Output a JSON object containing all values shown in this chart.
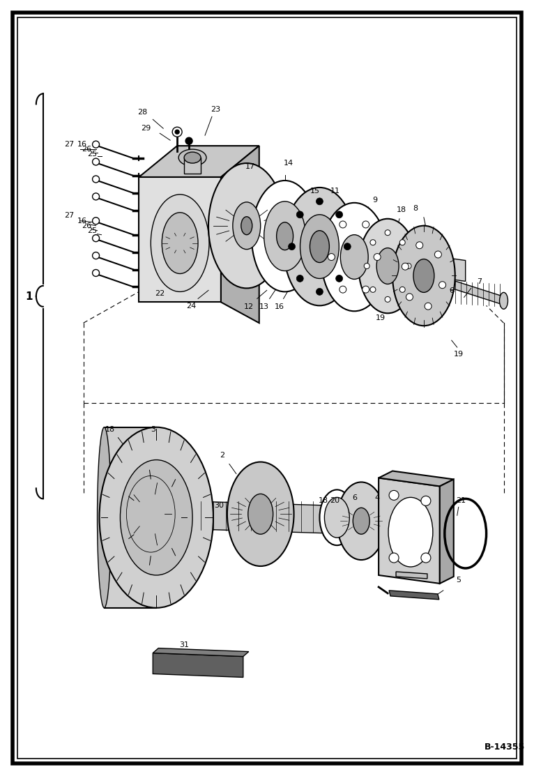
{
  "bg_color": "#ffffff",
  "fig_width": 7.49,
  "fig_height": 10.97,
  "reference_code": "B-14355",
  "border_outer_lw": 4,
  "border_inner_lw": 1.2,
  "label_fontsize": 8,
  "label_fontsize_small": 7
}
